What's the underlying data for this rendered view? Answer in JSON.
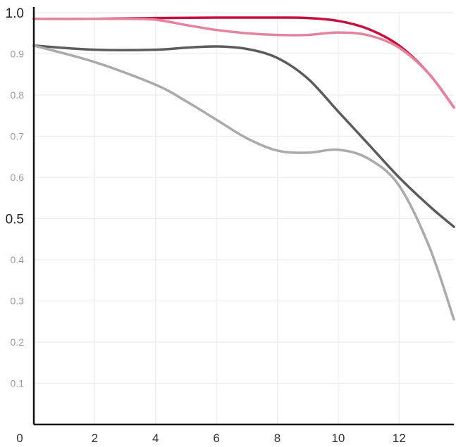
{
  "chart_data": {
    "type": "line",
    "title": "",
    "xlabel": "",
    "ylabel": "",
    "xlim": [
      0,
      13.8
    ],
    "ylim": [
      0,
      1.0
    ],
    "x_ticks": [
      2,
      4,
      6,
      8,
      10,
      12
    ],
    "y_ticks": [
      0.1,
      0.2,
      0.3,
      0.4,
      0.5,
      0.6,
      0.7,
      0.8,
      0.9,
      1.0
    ],
    "y_major_ticks": [
      0.5,
      1.0
    ],
    "origin_label": "0",
    "grid": true,
    "legend": "none",
    "series": [
      {
        "color": "#c8103e",
        "points": [
          [
            0,
            0.985
          ],
          [
            2,
            0.985
          ],
          [
            4,
            0.987
          ],
          [
            6,
            0.988
          ],
          [
            8,
            0.988
          ],
          [
            9,
            0.987
          ],
          [
            10,
            0.98
          ],
          [
            11,
            0.96
          ],
          [
            12,
            0.92
          ],
          [
            13,
            0.85
          ],
          [
            13.8,
            0.77
          ]
        ]
      },
      {
        "color": "#e4849c",
        "points": [
          [
            0,
            0.985
          ],
          [
            2,
            0.985
          ],
          [
            3,
            0.985
          ],
          [
            4,
            0.983
          ],
          [
            5,
            0.97
          ],
          [
            6,
            0.958
          ],
          [
            7,
            0.95
          ],
          [
            8,
            0.946
          ],
          [
            9,
            0.946
          ],
          [
            10,
            0.952
          ],
          [
            11,
            0.945
          ],
          [
            12,
            0.915
          ],
          [
            13,
            0.85
          ],
          [
            13.8,
            0.77
          ]
        ]
      },
      {
        "color": "#5c5c5c",
        "points": [
          [
            0,
            0.92
          ],
          [
            2,
            0.91
          ],
          [
            4,
            0.91
          ],
          [
            5,
            0.915
          ],
          [
            6,
            0.918
          ],
          [
            7,
            0.912
          ],
          [
            8,
            0.89
          ],
          [
            9,
            0.84
          ],
          [
            10,
            0.76
          ],
          [
            11,
            0.68
          ],
          [
            12,
            0.6
          ],
          [
            13,
            0.53
          ],
          [
            13.8,
            0.48
          ]
        ]
      },
      {
        "color": "#aaaaaa",
        "points": [
          [
            0,
            0.92
          ],
          [
            2,
            0.88
          ],
          [
            4,
            0.825
          ],
          [
            5,
            0.785
          ],
          [
            6,
            0.74
          ],
          [
            7,
            0.695
          ],
          [
            8,
            0.665
          ],
          [
            9,
            0.66
          ],
          [
            10,
            0.667
          ],
          [
            11,
            0.645
          ],
          [
            12,
            0.58
          ],
          [
            13,
            0.43
          ],
          [
            13.8,
            0.255
          ]
        ]
      }
    ]
  }
}
